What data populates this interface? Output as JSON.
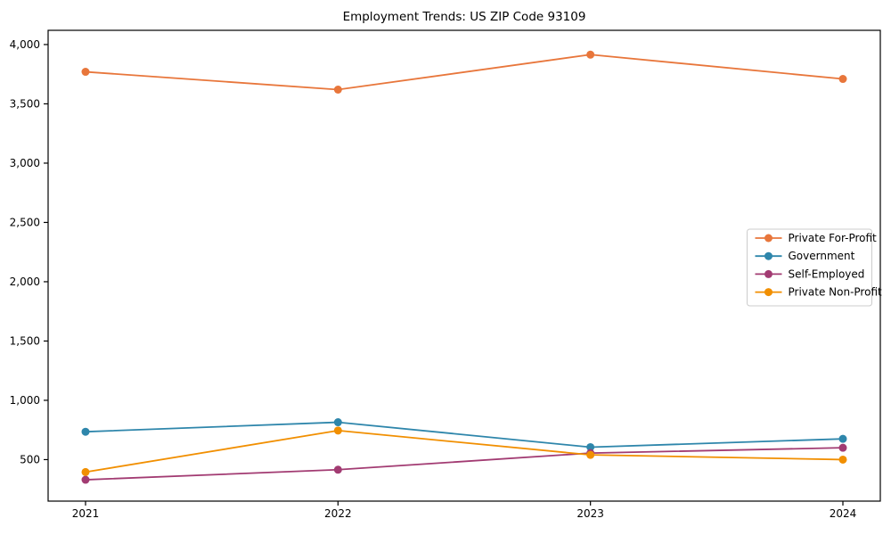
{
  "chart_data": {
    "type": "line",
    "title": "Employment Trends: US ZIP Code 93109",
    "xlabel": "",
    "ylabel": "",
    "x": [
      "2021",
      "2022",
      "2023",
      "2024"
    ],
    "series": [
      {
        "name": "Private For-Profit",
        "color": "#E8763B",
        "values": [
          3770,
          3620,
          3915,
          3710
        ]
      },
      {
        "name": "Government",
        "color": "#2E86AB",
        "values": [
          735,
          815,
          605,
          675
        ]
      },
      {
        "name": "Self-Employed",
        "color": "#A23B72",
        "values": [
          330,
          415,
          555,
          600
        ]
      },
      {
        "name": "Private Non-Profit",
        "color": "#F18F01",
        "values": [
          395,
          745,
          540,
          500
        ]
      }
    ],
    "ylim": [
      150,
      4120
    ],
    "yticks": [
      500,
      1000,
      1500,
      2000,
      2500,
      3000,
      3500,
      4000
    ],
    "ytick_labels": [
      "500",
      "1,000",
      "1,500",
      "2,000",
      "2,500",
      "3,000",
      "3,500",
      "4,000"
    ],
    "grid": false,
    "legend_position": "center right",
    "axis_color": "#000000",
    "background": "#ffffff"
  }
}
